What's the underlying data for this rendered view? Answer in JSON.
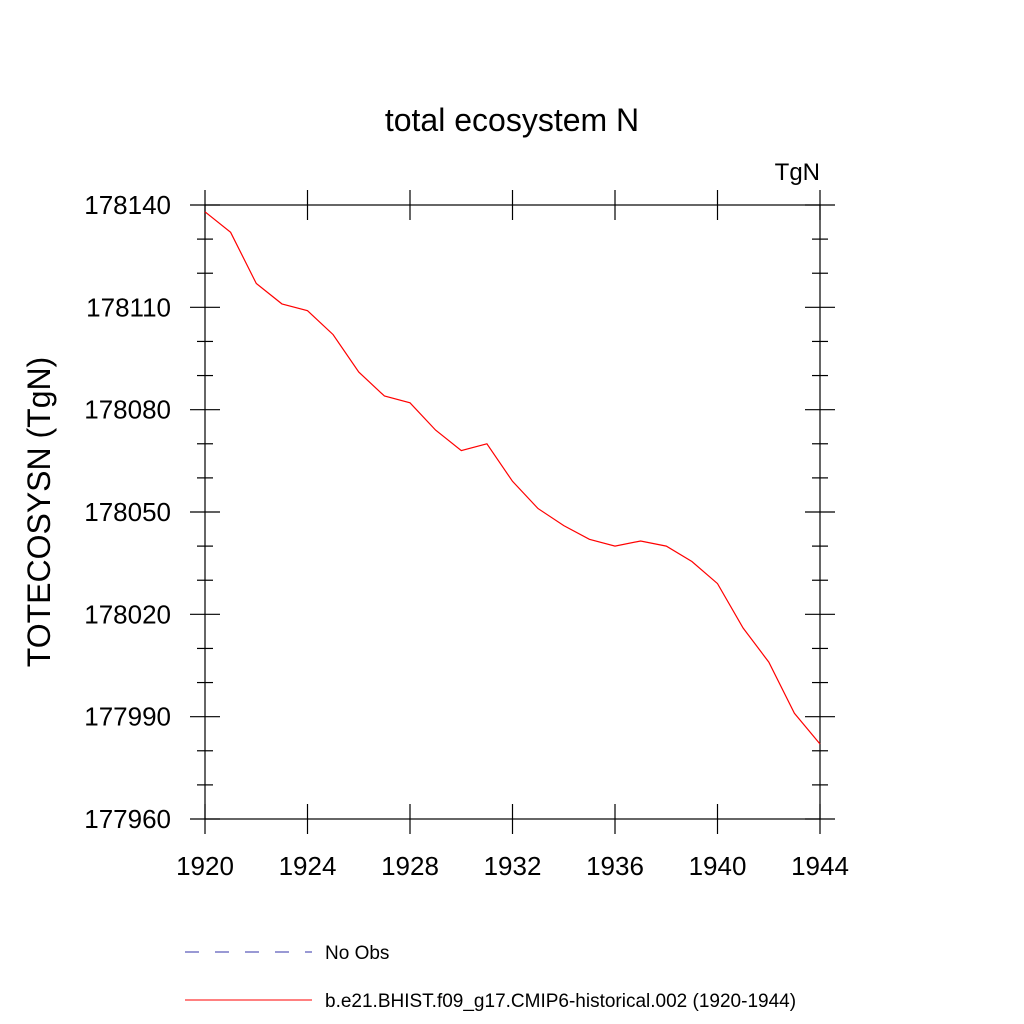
{
  "chart_data": {
    "type": "line",
    "title": "total ecosystem N",
    "units_label": "TgN",
    "ylabel": "TOTECOSYSN  (TgN)",
    "xlabel": "",
    "xlim": [
      1920,
      1944
    ],
    "ylim": [
      177960,
      178140
    ],
    "x_ticks": [
      1920,
      1924,
      1928,
      1932,
      1936,
      1940,
      1944
    ],
    "y_ticks": [
      177960,
      177990,
      178020,
      178050,
      178080,
      178110,
      178140
    ],
    "grid": false,
    "legend_position": "bottom",
    "x": [
      1920,
      1921,
      1922,
      1923,
      1924,
      1925,
      1926,
      1927,
      1928,
      1929,
      1930,
      1931,
      1932,
      1933,
      1934,
      1935,
      1936,
      1937,
      1938,
      1939,
      1940,
      1941,
      1942,
      1943,
      1944
    ],
    "series": [
      {
        "name": "b.e21.BHIST.f09_g17.CMIP6-historical.002 (1920-1944)",
        "color": "#ff0000",
        "dash": "solid",
        "values": [
          178138,
          178132,
          178117,
          178111,
          178109,
          178102,
          178091,
          178084,
          178082,
          178074,
          178068,
          178070,
          178059,
          178051,
          178046,
          178042,
          178040,
          178041.5,
          178040,
          178035.5,
          178029,
          178016,
          178006,
          177991,
          177982
        ]
      }
    ],
    "legend": [
      {
        "label": "No Obs",
        "color": "#3333aa",
        "dash": "dashed"
      },
      {
        "label": "b.e21.BHIST.f09_g17.CMIP6-historical.002 (1920-1944)",
        "color": "#ff0000",
        "dash": "solid"
      }
    ]
  }
}
